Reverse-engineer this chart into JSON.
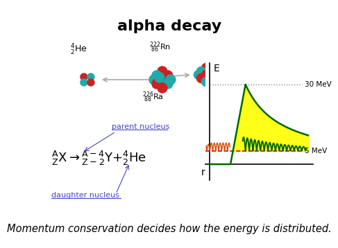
{
  "title": "alpha decay",
  "title_fontsize": 16,
  "title_fontweight": "bold",
  "bg_color": "#ffffff",
  "subtitle": "Momentum conservation decides how the energy is distributed.",
  "subtitle_fontsize": 10.5,
  "label_30MeV": "30 MeV",
  "label_5MeV": "5 MeV",
  "label_r": "r",
  "label_E": "E",
  "label_parent": "parent nucleus",
  "label_daughter": "daughter nucleus",
  "annotation_color": "#4444cc",
  "curve_color": "#006600",
  "fill_color": "#ffff00",
  "red_line_color": "#cc0000",
  "dotted_color": "#888888",
  "red_nuc": "#cc2222",
  "teal_nuc": "#22aaaa"
}
